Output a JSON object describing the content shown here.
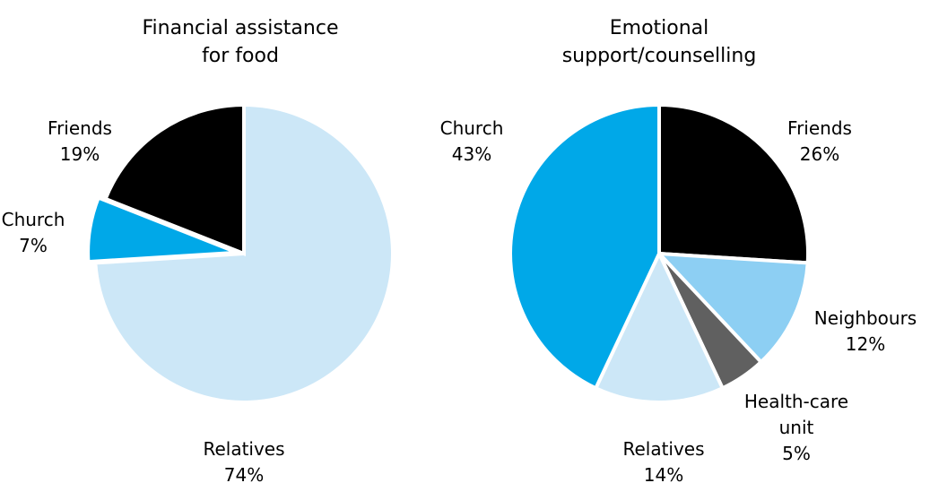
{
  "chart_data": [
    {
      "type": "pie",
      "title": "Financial assistance\nfor food",
      "start_angle_deg": 90,
      "direction": "clockwise",
      "slices": [
        {
          "label": "Relatives",
          "value": 74,
          "value_text": "74%",
          "color": "#cce7f7"
        },
        {
          "label": "Church",
          "value": 7,
          "value_text": "7%",
          "color": "#00a8e8"
        },
        {
          "label": "Friends",
          "value": 19,
          "value_text": "19%",
          "color": "#000000"
        }
      ]
    },
    {
      "type": "pie",
      "title": "Emotional\nsupport/counselling",
      "start_angle_deg": 90,
      "direction": "clockwise",
      "slices": [
        {
          "label": "Friends",
          "value": 26,
          "value_text": "26%",
          "color": "#000000"
        },
        {
          "label": "Neighbours",
          "value": 12,
          "value_text": "12%",
          "color": "#8dcff3"
        },
        {
          "label": "Health-care unit",
          "value": 5,
          "value_text": "5%",
          "color": "#606060"
        },
        {
          "label": "Relatives",
          "value": 14,
          "value_text": "14%",
          "color": "#cce7f7"
        },
        {
          "label": "Church",
          "value": 43,
          "value_text": "43%",
          "color": "#00a8e8"
        }
      ]
    }
  ]
}
